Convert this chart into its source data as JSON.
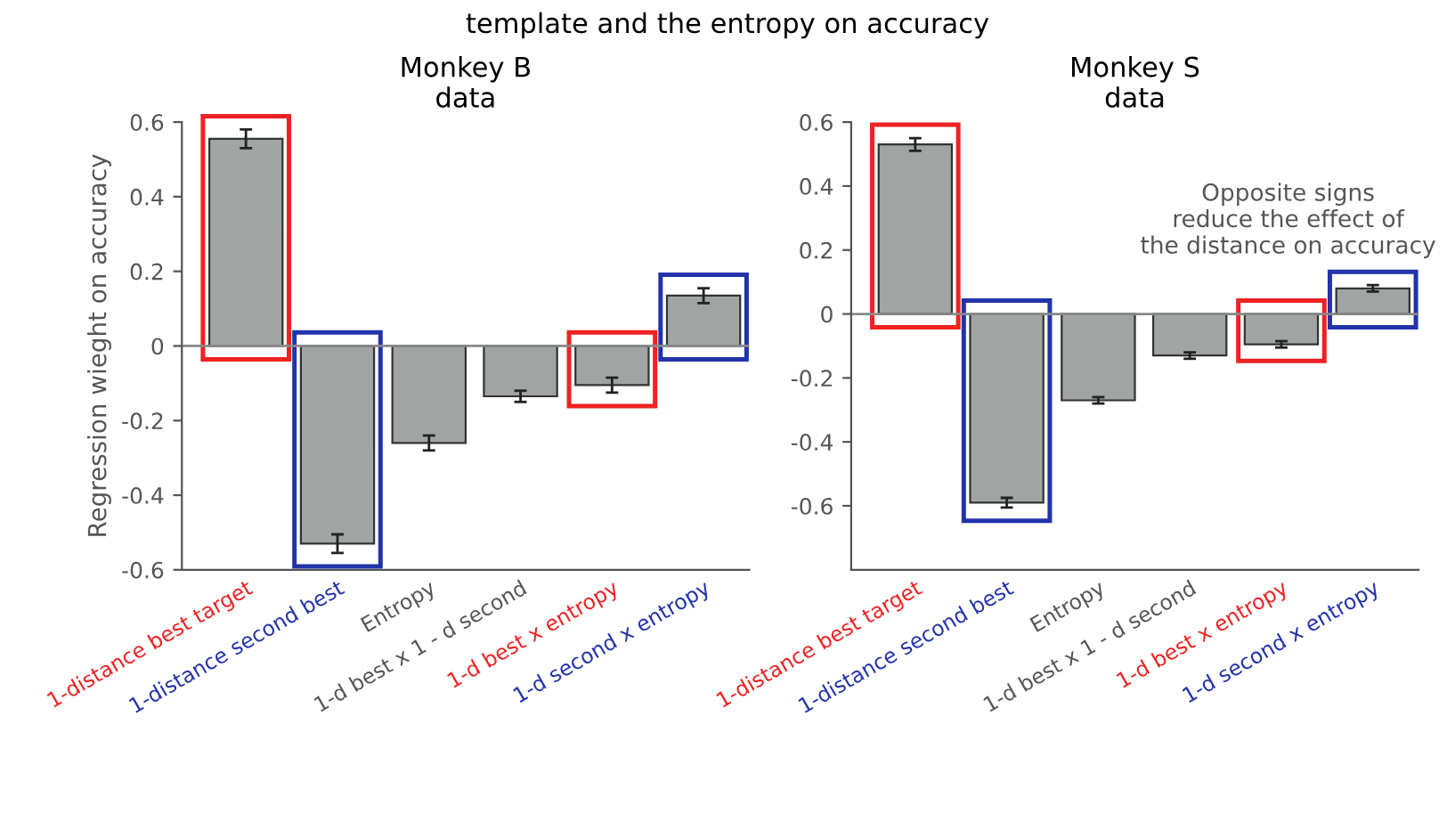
{
  "chart_data": [
    {
      "type": "bar",
      "title": "Monkey B\ndata",
      "ylabel": "Regression wieght on accuracy",
      "categories": [
        "1-distance best target",
        "1-distance second best",
        "Entropy",
        "1-d best x 1 - d second",
        "1-d best x entropy",
        "1-d second x entropy"
      ],
      "values": [
        0.555,
        -0.53,
        -0.26,
        -0.135,
        -0.105,
        0.135
      ],
      "errors": [
        0.025,
        0.025,
        0.02,
        0.015,
        0.02,
        0.02
      ],
      "color": "#a0a4a3",
      "ylim": [
        -0.6,
        0.6
      ],
      "yticks": [
        -0.6,
        -0.4,
        -0.2,
        0,
        0.2,
        0.4,
        0.6
      ],
      "ref_lines": [
        {
          "axis": "y",
          "value": 0,
          "label": null,
          "color": "#888888"
        }
      ],
      "annotations": [
        "template and the entropy on accuracy"
      ],
      "grid": false,
      "legend": false
    },
    {
      "type": "bar",
      "title": "Monkey S\ndata",
      "categories": [
        "1-distance best target",
        "1-distance second best",
        "Entropy",
        "1-d best x 1 - d second",
        "1-d best x entropy",
        "1-d second x entropy"
      ],
      "values": [
        0.53,
        -0.59,
        -0.27,
        -0.13,
        -0.095,
        0.08
      ],
      "errors": [
        0.02,
        0.015,
        0.01,
        0.01,
        0.01,
        0.01
      ],
      "color": "#a0a4a3",
      "ylim": [
        -0.8,
        0.6
      ],
      "yticks": [
        -0.6,
        -0.4,
        -0.2,
        0,
        0.2,
        0.4,
        0.6
      ],
      "ref_lines": [
        {
          "axis": "y",
          "value": 0,
          "label": null,
          "color": "#888888"
        }
      ],
      "annotations": [
        "Opposite signs\nreduce the effect of\nthe distance on accuracy"
      ],
      "grid": false,
      "legend": false
    }
  ]
}
